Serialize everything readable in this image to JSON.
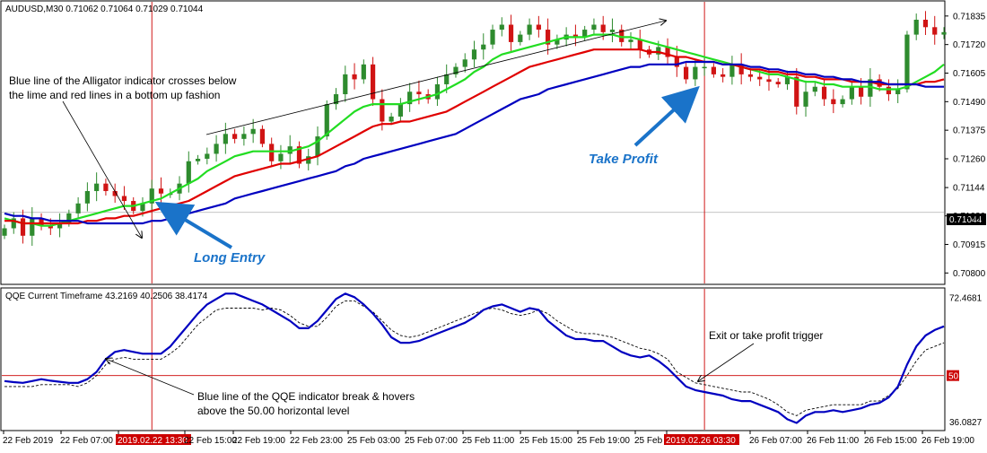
{
  "main_header": "AUDUSD,M30  0.71062 0.71064 0.71029 0.71044",
  "sub_header": "QQE Current Timeframe 43.2169 40.2506 38.4174",
  "annotations": {
    "alligator_note_line1": "Blue line of the Alligator indicator crosses below",
    "alligator_note_line2": "the lime and red lines in a bottom up fashion",
    "long_entry": "Long Entry",
    "take_profit": "Take Profit",
    "exit_trigger": "Exit or take profit trigger",
    "qqe_note_line1": "Blue line of the QQE indicator break & hovers",
    "qqe_note_line2": "above the 50.00 horizontal level"
  },
  "current_price": "0.71044",
  "colors": {
    "lime": "#22dd22",
    "red": "#e00000",
    "blue": "#0000c0",
    "bull": "#2e8b2e",
    "bear": "#d01414",
    "callout": "#1a73c9",
    "marker": "#cc0000"
  },
  "chart_data": [
    {
      "type": "candlestick",
      "symbol": "AUDUSD",
      "timeframe": "M30",
      "y_ticks": [
        0.708,
        0.70915,
        0.7103,
        0.71144,
        0.7126,
        0.71375,
        0.7149,
        0.71605,
        0.7172,
        0.71835
      ],
      "y_tick_labels": [
        "0.70800",
        "0.70915",
        "0.71030",
        "0.71144",
        "0.71260",
        "0.71375",
        "0.71490",
        "0.71605",
        "0.71720",
        "0.71835"
      ],
      "ylim": [
        0.70765,
        0.71885
      ],
      "x_tick_labels": [
        "22 Feb 2019",
        "22 Feb 07:00",
        "2019.02.22 13:30",
        "22 Feb 15:00",
        "22 Feb 19:00",
        "22 Feb 23:00",
        "25 Feb 03:00",
        "25 Feb 07:00",
        "25 Feb 11:00",
        "25 Feb 15:00",
        "25 Feb 19:00",
        "25 Feb 23:00",
        "2019.02.26 03:30",
        "26 Feb 07:00",
        "26 Feb 11:00",
        "26 Feb 15:00",
        "26 Feb 19:00"
      ],
      "highlighted_x_labels": [
        "2019.02.22 13:30",
        "2019.02.26 03:30"
      ],
      "current_price": 0.71044,
      "series": [
        {
          "name": "close",
          "values": [
            0.7098,
            0.7102,
            0.7095,
            0.7102,
            0.7099,
            0.7098,
            0.71,
            0.7104,
            0.7108,
            0.7113,
            0.7116,
            0.7113,
            0.7111,
            0.7109,
            0.7105,
            0.7108,
            0.7114,
            0.7112,
            0.7112,
            0.7116,
            0.7125,
            0.7126,
            0.7128,
            0.7132,
            0.7136,
            0.7134,
            0.7136,
            0.7138,
            0.7132,
            0.7125,
            0.7128,
            0.7131,
            0.7124,
            0.7127,
            0.7135,
            0.7148,
            0.7152,
            0.716,
            0.7158,
            0.7164,
            0.715,
            0.7141,
            0.7143,
            0.7148,
            0.7153,
            0.7152,
            0.715,
            0.7156,
            0.716,
            0.7163,
            0.7166,
            0.717,
            0.7172,
            0.7178,
            0.718,
            0.7173,
            0.7176,
            0.718,
            0.7178,
            0.7172,
            0.7174,
            0.7176,
            0.7175,
            0.7178,
            0.718,
            0.7177,
            0.7178,
            0.7173,
            0.7174,
            0.717,
            0.7168,
            0.7171,
            0.7167,
            0.7163,
            0.7158,
            0.7163,
            0.7163,
            0.716,
            0.7159,
            0.7164,
            0.716,
            0.7159,
            0.7158,
            0.7157,
            0.7156,
            0.7159,
            0.7147,
            0.7153,
            0.7155,
            0.715,
            0.7148,
            0.715,
            0.7155,
            0.7151,
            0.7158,
            0.7155,
            0.7152,
            0.7154,
            0.7176,
            0.7182,
            0.7179,
            0.7176,
            0.7177
          ]
        },
        {
          "name": "lime",
          "values": [
            0.7102,
            0.7101,
            0.71,
            0.71,
            0.7099,
            0.7099,
            0.71,
            0.7101,
            0.7102,
            0.7103,
            0.7104,
            0.7105,
            0.7106,
            0.7107,
            0.7107,
            0.7108,
            0.7109,
            0.711,
            0.7112,
            0.7114,
            0.7116,
            0.7118,
            0.7121,
            0.7123,
            0.7125,
            0.7127,
            0.7128,
            0.7129,
            0.7129,
            0.7129,
            0.7129,
            0.7129,
            0.713,
            0.7131,
            0.7133,
            0.7136,
            0.7139,
            0.7142,
            0.7145,
            0.7147,
            0.7148,
            0.7148,
            0.7148,
            0.7148,
            0.7149,
            0.715,
            0.7151,
            0.7152,
            0.7154,
            0.7156,
            0.7158,
            0.7161,
            0.7163,
            0.7166,
            0.7168,
            0.7169,
            0.717,
            0.7171,
            0.7172,
            0.7173,
            0.7174,
            0.7175,
            0.7175,
            0.7175,
            0.7176,
            0.7176,
            0.7176,
            0.7175,
            0.7175,
            0.7174,
            0.7173,
            0.7172,
            0.7171,
            0.717,
            0.7169,
            0.7168,
            0.7167,
            0.7166,
            0.7165,
            0.7164,
            0.7163,
            0.7162,
            0.7161,
            0.716,
            0.716,
            0.7159,
            0.7158,
            0.7157,
            0.7157,
            0.7156,
            0.7156,
            0.7155,
            0.7155,
            0.7155,
            0.7155,
            0.7154,
            0.7154,
            0.7154,
            0.7155,
            0.7157,
            0.7159,
            0.7161,
            0.7164
          ]
        },
        {
          "name": "red",
          "values": [
            0.7101,
            0.7101,
            0.71,
            0.71,
            0.71,
            0.71,
            0.71,
            0.71,
            0.71,
            0.7101,
            0.7101,
            0.7102,
            0.7102,
            0.7103,
            0.7103,
            0.7104,
            0.7105,
            0.7106,
            0.7107,
            0.7108,
            0.7109,
            0.7111,
            0.7113,
            0.7115,
            0.7117,
            0.7119,
            0.712,
            0.7121,
            0.7122,
            0.7123,
            0.7124,
            0.7124,
            0.7125,
            0.7126,
            0.7127,
            0.7129,
            0.7131,
            0.7133,
            0.7135,
            0.7137,
            0.7139,
            0.714,
            0.714,
            0.7141,
            0.7141,
            0.7142,
            0.7143,
            0.7144,
            0.7145,
            0.7147,
            0.7149,
            0.7151,
            0.7153,
            0.7155,
            0.7157,
            0.7159,
            0.7161,
            0.7163,
            0.7164,
            0.7165,
            0.7166,
            0.7167,
            0.7168,
            0.7169,
            0.717,
            0.717,
            0.717,
            0.717,
            0.717,
            0.717,
            0.7169,
            0.7169,
            0.7168,
            0.7167,
            0.7167,
            0.7166,
            0.7165,
            0.7165,
            0.7164,
            0.7164,
            0.7163,
            0.7162,
            0.7162,
            0.7161,
            0.7161,
            0.716,
            0.716,
            0.7159,
            0.7159,
            0.7158,
            0.7158,
            0.7158,
            0.7157,
            0.7157,
            0.7157,
            0.7156,
            0.7156,
            0.7156,
            0.7156,
            0.7156,
            0.7157,
            0.7157,
            0.7158
          ]
        },
        {
          "name": "blue",
          "values": [
            0.7104,
            0.7103,
            0.7103,
            0.7102,
            0.7102,
            0.7101,
            0.7101,
            0.7101,
            0.7101,
            0.71,
            0.71,
            0.71,
            0.71,
            0.71,
            0.71,
            0.71,
            0.7101,
            0.7101,
            0.7102,
            0.7103,
            0.7104,
            0.7105,
            0.7106,
            0.7107,
            0.7108,
            0.711,
            0.7111,
            0.7112,
            0.7113,
            0.7114,
            0.7115,
            0.7116,
            0.7117,
            0.7118,
            0.7119,
            0.712,
            0.7121,
            0.7123,
            0.7124,
            0.7126,
            0.7127,
            0.7128,
            0.7129,
            0.713,
            0.7131,
            0.7132,
            0.7133,
            0.7134,
            0.7135,
            0.7136,
            0.7138,
            0.714,
            0.7142,
            0.7144,
            0.7146,
            0.7148,
            0.715,
            0.7151,
            0.7152,
            0.7154,
            0.7155,
            0.7156,
            0.7157,
            0.7158,
            0.7159,
            0.716,
            0.7161,
            0.7162,
            0.7163,
            0.7163,
            0.7164,
            0.7164,
            0.7164,
            0.7164,
            0.7165,
            0.7165,
            0.7165,
            0.7165,
            0.7164,
            0.7164,
            0.7164,
            0.7163,
            0.7163,
            0.7162,
            0.7162,
            0.7161,
            0.7161,
            0.716,
            0.716,
            0.7159,
            0.7159,
            0.7158,
            0.7158,
            0.7157,
            0.7157,
            0.7157,
            0.7156,
            0.7156,
            0.7156,
            0.7156,
            0.7155,
            0.7155,
            0.7155
          ]
        }
      ]
    },
    {
      "type": "line",
      "name": "QQE Current Timeframe",
      "ylim": [
        35.4,
        73.3
      ],
      "y_tick_labels": [
        "72.4681",
        "50",
        "36.0827"
      ],
      "y_ticks": [
        72.4681,
        50,
        36.0827
      ],
      "level": 50,
      "series": [
        {
          "name": "qqe_blue",
          "values": [
            48.5,
            48.2,
            48.0,
            48.5,
            49.0,
            48.6,
            48.3,
            48.0,
            48.0,
            49.0,
            51.0,
            54.5,
            56.5,
            57.0,
            56.5,
            56.0,
            56.0,
            56.0,
            58.0,
            61.0,
            64.0,
            67.0,
            69.5,
            71.0,
            72.5,
            72.5,
            71.5,
            70.5,
            69.5,
            68.0,
            66.5,
            65.0,
            63.0,
            63.0,
            65.0,
            68.0,
            71.0,
            72.5,
            71.5,
            69.5,
            67.0,
            64.0,
            60.5,
            59.0,
            59.0,
            59.5,
            60.5,
            61.5,
            62.5,
            63.5,
            64.5,
            66.0,
            68.0,
            69.0,
            69.5,
            68.5,
            67.5,
            68.5,
            68.0,
            65.0,
            63.0,
            61.0,
            60.0,
            60.0,
            59.5,
            59.5,
            58.0,
            56.5,
            55.5,
            55.0,
            55.5,
            54.0,
            52.0,
            49.5,
            47.0,
            46.0,
            45.5,
            45.0,
            44.5,
            43.5,
            43.0,
            43.0,
            42.0,
            41.0,
            40.0,
            38.0,
            37.0,
            39.0,
            40.0,
            40.0,
            40.5,
            40.0,
            40.5,
            41.0,
            42.0,
            42.5,
            44.0,
            47.0,
            53.0,
            58.0,
            61.0,
            62.5,
            63.5
          ]
        },
        {
          "name": "qqe_dashed",
          "values": [
            47.0,
            47.0,
            47.0,
            47.0,
            47.5,
            47.5,
            47.5,
            47.5,
            47.0,
            48.0,
            50.0,
            53.0,
            54.5,
            55.0,
            54.5,
            54.5,
            54.5,
            54.5,
            56.0,
            58.0,
            61.0,
            64.0,
            66.0,
            68.0,
            68.5,
            68.5,
            68.5,
            68.5,
            68.0,
            68.5,
            68.0,
            66.5,
            64.5,
            63.5,
            63.5,
            66.0,
            69.0,
            70.5,
            70.5,
            69.0,
            67.5,
            65.0,
            62.5,
            61.0,
            60.5,
            61.0,
            62.0,
            63.0,
            64.0,
            65.0,
            66.0,
            67.0,
            68.0,
            68.5,
            68.0,
            67.0,
            66.5,
            67.0,
            68.0,
            67.0,
            65.0,
            63.5,
            62.0,
            61.5,
            61.5,
            61.0,
            60.5,
            59.5,
            58.5,
            57.5,
            57.0,
            56.0,
            54.5,
            51.0,
            49.5,
            48.0,
            47.5,
            47.0,
            46.5,
            46.0,
            45.5,
            45.5,
            44.5,
            43.5,
            42.0,
            40.0,
            39.0,
            40.5,
            41.0,
            41.5,
            42.0,
            42.0,
            42.0,
            42.0,
            43.0,
            43.0,
            44.5,
            46.5,
            50.0,
            54.0,
            57.0,
            58.0,
            59.0
          ]
        }
      ]
    }
  ]
}
